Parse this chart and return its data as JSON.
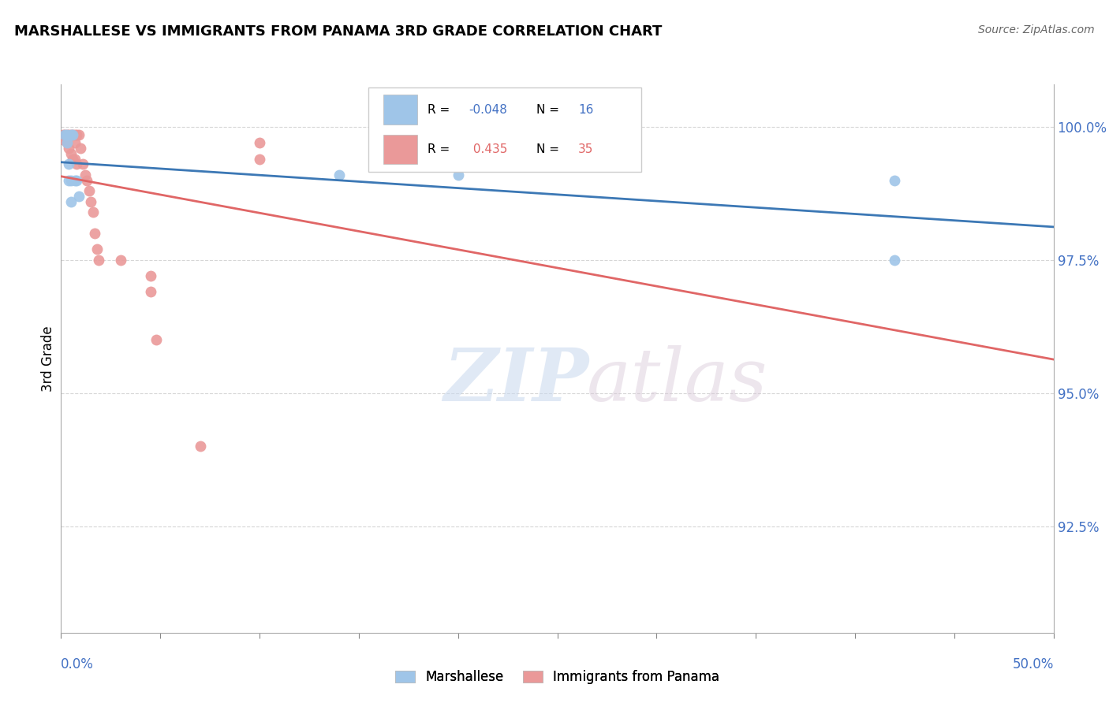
{
  "title": "MARSHALLESE VS IMMIGRANTS FROM PANAMA 3RD GRADE CORRELATION CHART",
  "source_text": "Source: ZipAtlas.com",
  "ylabel": "3rd Grade",
  "y_tick_labels": [
    "100.0%",
    "97.5%",
    "95.0%",
    "92.5%"
  ],
  "y_tick_values": [
    1.0,
    0.975,
    0.95,
    0.925
  ],
  "x_min": 0.0,
  "x_max": 0.5,
  "y_min": 0.905,
  "y_max": 1.008,
  "blue_color": "#9FC5E8",
  "pink_color": "#EA9999",
  "blue_line_color": "#3C78B5",
  "pink_line_color": "#E06666",
  "axis_label_color": "#4472C4",
  "grid_color": "#CCCCCC",
  "blue_scatter_x": [
    0.002,
    0.003,
    0.003,
    0.004,
    0.004,
    0.005,
    0.005,
    0.005,
    0.006,
    0.007,
    0.008,
    0.009,
    0.14,
    0.2,
    0.42,
    0.42
  ],
  "blue_scatter_y": [
    0.9985,
    0.9985,
    0.997,
    0.993,
    0.99,
    0.9985,
    0.99,
    0.986,
    0.9985,
    0.99,
    0.99,
    0.987,
    0.991,
    0.991,
    0.99,
    0.975
  ],
  "pink_scatter_x": [
    0.001,
    0.002,
    0.002,
    0.003,
    0.003,
    0.004,
    0.004,
    0.005,
    0.005,
    0.006,
    0.006,
    0.007,
    0.007,
    0.007,
    0.008,
    0.008,
    0.009,
    0.01,
    0.011,
    0.012,
    0.013,
    0.014,
    0.015,
    0.016,
    0.017,
    0.018,
    0.019,
    0.1,
    0.1,
    0.2,
    0.03,
    0.045,
    0.045,
    0.048,
    0.07
  ],
  "pink_scatter_y": [
    0.9985,
    0.9985,
    0.9975,
    0.9985,
    0.997,
    0.9985,
    0.996,
    0.9985,
    0.995,
    0.9985,
    0.994,
    0.9985,
    0.997,
    0.994,
    0.9985,
    0.993,
    0.9985,
    0.996,
    0.993,
    0.991,
    0.99,
    0.988,
    0.986,
    0.984,
    0.98,
    0.977,
    0.975,
    0.997,
    0.994,
    0.9985,
    0.975,
    0.972,
    0.969,
    0.96,
    0.94
  ],
  "watermark_zip": "ZIP",
  "watermark_atlas": "atlas"
}
